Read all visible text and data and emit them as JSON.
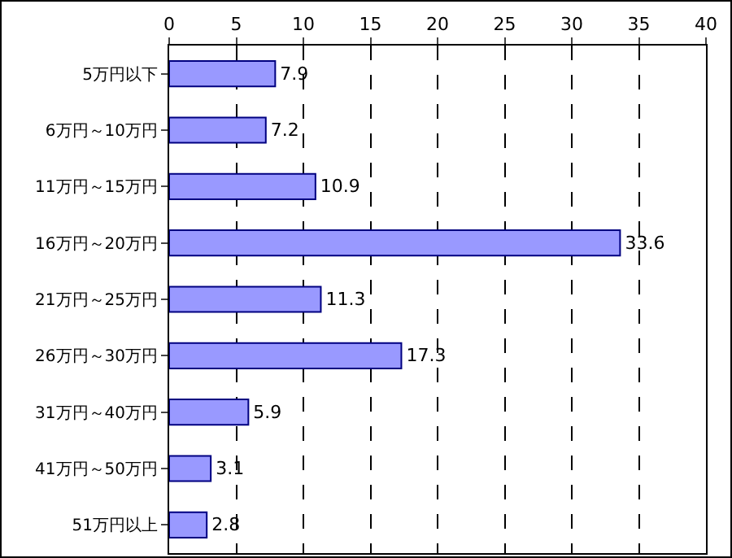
{
  "chart_data": {
    "type": "bar",
    "orientation": "horizontal",
    "categories": [
      "5万円以下",
      "6万円～10万円",
      "11万円～15万円",
      "16万円～20万円",
      "21万円～25万円",
      "26万円～30万円",
      "31万円～40万円",
      "41万円～50万円",
      "51万円以上"
    ],
    "values": [
      7.9,
      7.2,
      10.9,
      33.6,
      11.3,
      17.3,
      5.9,
      3.1,
      2.8
    ],
    "color": "#9999ff",
    "xlim": [
      0,
      40
    ],
    "xticks": [
      0,
      5,
      10,
      15,
      20,
      25,
      30,
      35,
      40
    ],
    "grid": "x",
    "line_style": "dashed",
    "data_labels": true
  }
}
